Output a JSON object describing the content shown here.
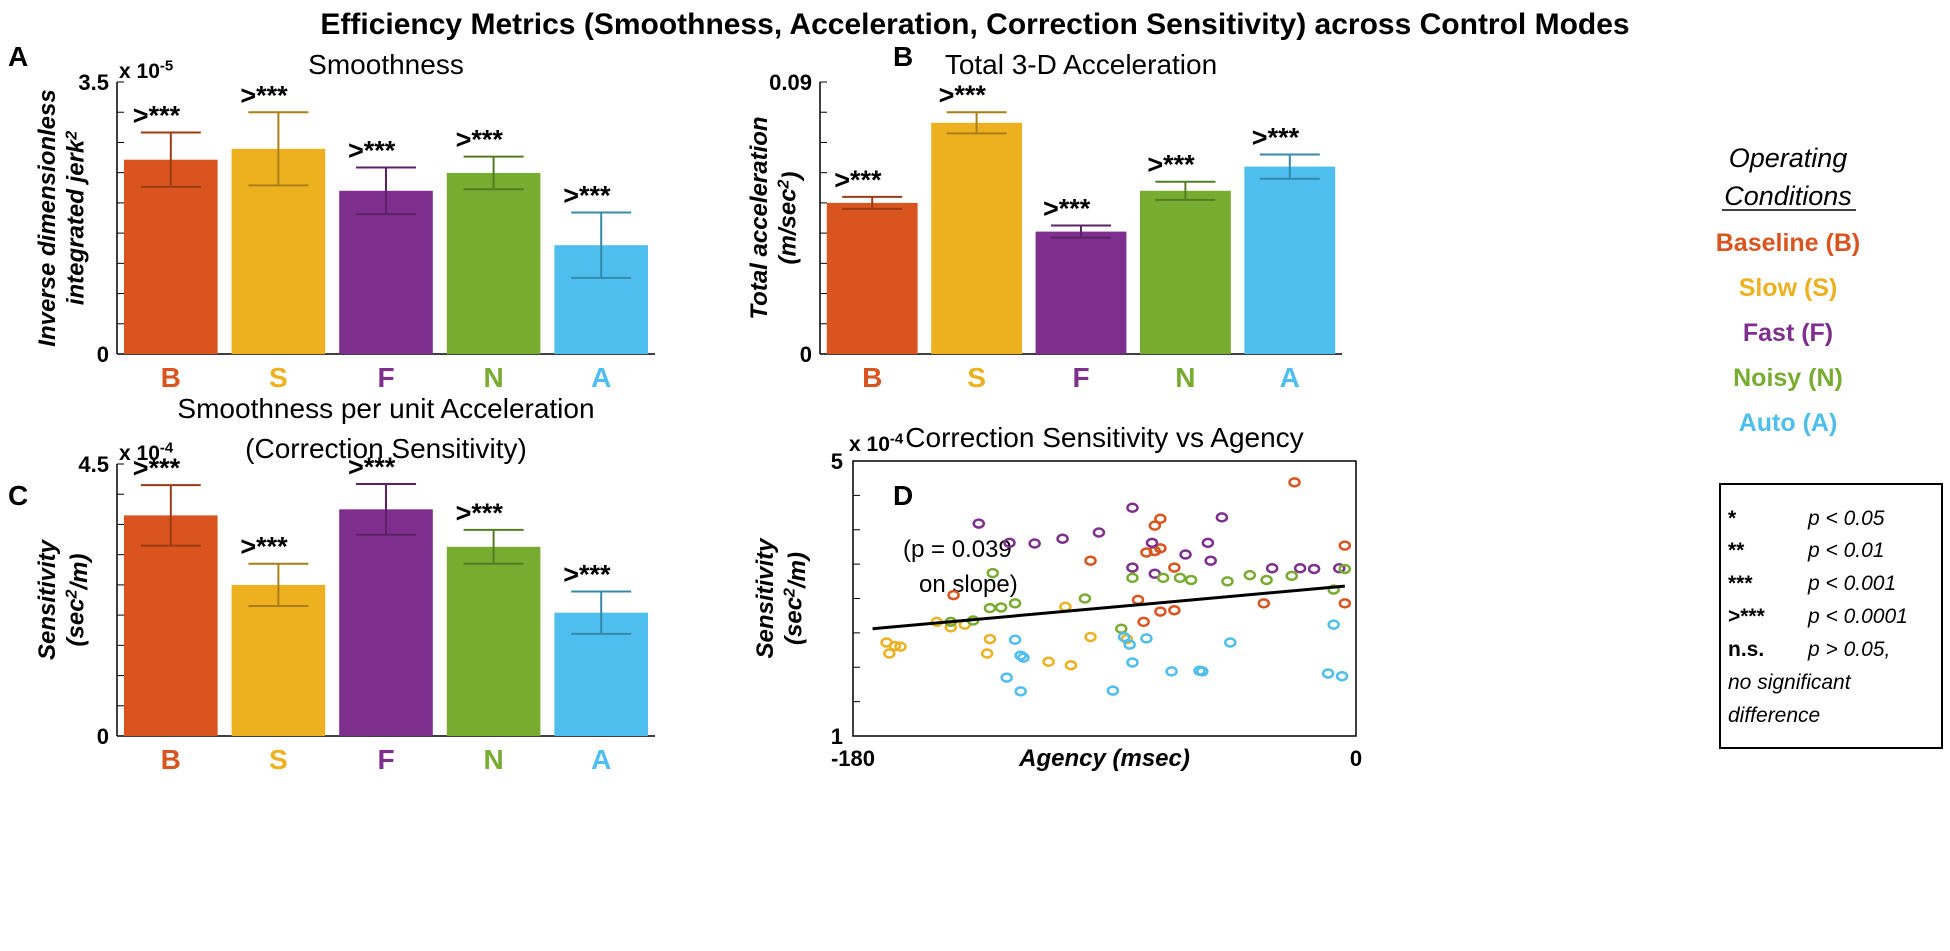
{
  "figure_title": "Efficiency Metrics (Smoothness, Acceleration, Correction Sensitivity) across Control Modes",
  "colors": {
    "B": "#d9541e",
    "S": "#edb120",
    "F": "#7e2f8e",
    "N": "#77ac30",
    "A": "#4dbeee",
    "axis": "#000000"
  },
  "panels": {
    "A": {
      "letter": "A"
    },
    "B": {
      "letter": "B"
    },
    "C": {
      "letter": "C"
    },
    "D": {
      "letter": "D"
    }
  },
  "legend": {
    "heading_line1": "Operating",
    "heading_line2": "Conditions",
    "items": [
      {
        "key": "B",
        "label": "Baseline (B)"
      },
      {
        "key": "S",
        "label": "Slow (S)"
      },
      {
        "key": "F",
        "label": "Fast (F)"
      },
      {
        "key": "N",
        "label": "Noisy (N)"
      },
      {
        "key": "A",
        "label": "Auto (A)"
      }
    ]
  },
  "significance_key": [
    {
      "symbol": "*",
      "text": "p < 0.05"
    },
    {
      "symbol": "**",
      "text": "p < 0.01"
    },
    {
      "symbol": "***",
      "text": "p < 0.001"
    },
    {
      "symbol": ">***",
      "text": "p < 0.0001"
    },
    {
      "symbol": "n.s.",
      "text": "p > 0.05,"
    },
    {
      "symbol": "",
      "text": "no significant"
    },
    {
      "symbol": "",
      "text": "difference"
    }
  ],
  "chart_data": [
    {
      "panel": "A",
      "type": "bar",
      "title": "Smoothness",
      "ylabel_line1": "Inverse dimensionless",
      "ylabel_line2": "integrated jerk",
      "ylabel_sup": "2",
      "y_exponent": "x 10",
      "y_exponent_power": "-5",
      "ylim": [
        0,
        3.5
      ],
      "yticks": [
        {
          "v": 0,
          "label": "0"
        },
        {
          "v": 3.5,
          "label": "3.5"
        }
      ],
      "categories": [
        "B",
        "S",
        "F",
        "N",
        "A"
      ],
      "values": [
        2.5,
        2.64,
        2.1,
        2.33,
        1.4
      ],
      "errors": [
        0.35,
        0.47,
        0.3,
        0.21,
        0.42
      ],
      "significance": [
        ">***",
        ">***",
        ">***",
        ">***",
        ">***"
      ]
    },
    {
      "panel": "B",
      "type": "bar",
      "title": "Total 3-D Acceleration",
      "ylabel_line1": "Total acceleration",
      "ylabel_line2": "(m/sec",
      "ylabel_sup": "2",
      "ylabel_tail": ")",
      "y_exponent": "",
      "y_exponent_power": "",
      "ylim": [
        0,
        0.09
      ],
      "yticks": [
        {
          "v": 0,
          "label": "0"
        },
        {
          "v": 0.09,
          "label": "0.09"
        }
      ],
      "categories": [
        "B",
        "S",
        "F",
        "N",
        "A"
      ],
      "values": [
        0.05,
        0.0765,
        0.0405,
        0.054,
        0.062
      ],
      "errors": [
        0.002,
        0.0035,
        0.002,
        0.003,
        0.004
      ],
      "significance": [
        ">***",
        ">***",
        ">***",
        ">***",
        ">***"
      ]
    },
    {
      "panel": "C",
      "type": "bar",
      "title": "Smoothness per unit Acceleration",
      "subtitle": "(Correction Sensitivity)",
      "ylabel_line1": "Sensitivity",
      "ylabel_line2": "(sec",
      "ylabel_sup": "2",
      "ylabel_tail": "/m)",
      "y_exponent": "x 10",
      "y_exponent_power": "-4",
      "ylim": [
        0,
        4.5
      ],
      "yticks": [
        {
          "v": 0,
          "label": "0"
        },
        {
          "v": 4.5,
          "label": "4.5"
        }
      ],
      "categories": [
        "B",
        "S",
        "F",
        "N",
        "A"
      ],
      "values": [
        3.65,
        2.5,
        3.75,
        3.13,
        2.04
      ],
      "errors": [
        0.5,
        0.35,
        0.42,
        0.28,
        0.35
      ],
      "significance": [
        ">***",
        ">***",
        ">***",
        ">***",
        ">***"
      ]
    },
    {
      "panel": "D",
      "type": "scatter",
      "title": "Correction Sensitivity vs Agency",
      "xlabel": "Agency (msec)",
      "ylabel_line1": "Sensitivity",
      "ylabel_line2": "(sec",
      "ylabel_sup": "2",
      "ylabel_tail": "/m)",
      "y_exponent": "x 10",
      "y_exponent_power": "-4",
      "xlim": [
        -180,
        0
      ],
      "ylim": [
        1,
        5
      ],
      "xticks": [
        {
          "v": -180,
          "label": "-180"
        },
        {
          "v": 0,
          "label": "0"
        }
      ],
      "yticks": [
        {
          "v": 1,
          "label": "1"
        },
        {
          "v": 5,
          "label": "5"
        }
      ],
      "annotation_line1": "(p = 0.039",
      "annotation_line2": "on slope)",
      "fit_line": {
        "x": [
          -173,
          -4
        ],
        "y": [
          2.56,
          3.18
        ]
      },
      "series": [
        {
          "name": "B",
          "points": [
            [
              -144,
              3.05
            ],
            [
              -95,
              3.55
            ],
            [
              -75,
              3.67
            ],
            [
              -72,
              4.06
            ],
            [
              -72,
              3.69
            ],
            [
              -70,
              3.73
            ],
            [
              -70,
              4.16
            ],
            [
              -65,
              3.45
            ],
            [
              -33,
              2.93
            ],
            [
              -22,
              4.69
            ],
            [
              -4,
              3.77
            ],
            [
              -4,
              2.93
            ],
            [
              -76,
              2.66
            ],
            [
              -70,
              2.81
            ],
            [
              -65,
              2.83
            ],
            [
              -78,
              2.98
            ]
          ]
        },
        {
          "name": "S",
          "points": [
            [
              -168,
              2.36
            ],
            [
              -165,
              2.31
            ],
            [
              -167,
              2.2
            ],
            [
              -163,
              2.3
            ],
            [
              -150,
              2.66
            ],
            [
              -145,
              2.58
            ],
            [
              -140,
              2.62
            ],
            [
              -132,
              2.2
            ],
            [
              -131,
              2.41
            ],
            [
              -110,
              2.08
            ],
            [
              -104,
              2.88
            ],
            [
              -102,
              2.03
            ],
            [
              -95,
              2.44
            ],
            [
              -82,
              2.41
            ]
          ]
        },
        {
          "name": "F",
          "points": [
            [
              -135,
              4.09
            ],
            [
              -124,
              3.81
            ],
            [
              -115,
              3.8
            ],
            [
              -105,
              3.87
            ],
            [
              -92,
              3.96
            ],
            [
              -80,
              4.32
            ],
            [
              -73,
              3.81
            ],
            [
              -53,
              3.81
            ],
            [
              -52,
              3.55
            ],
            [
              -61,
              3.64
            ],
            [
              -48,
              4.18
            ],
            [
              -30,
              3.44
            ],
            [
              -20,
              3.44
            ],
            [
              -15,
              3.43
            ],
            [
              -6,
              3.44
            ],
            [
              -80,
              3.45
            ],
            [
              -72,
              3.36
            ]
          ]
        },
        {
          "name": "N",
          "points": [
            [
              -145,
              2.66
            ],
            [
              -137,
              2.68
            ],
            [
              -130,
              3.37
            ],
            [
              -131,
              2.86
            ],
            [
              -127,
              2.87
            ],
            [
              -122,
              2.93
            ],
            [
              -97,
              3.0
            ],
            [
              -80,
              3.3
            ],
            [
              -69,
              3.3
            ],
            [
              -63,
              3.3
            ],
            [
              -59,
              3.27
            ],
            [
              -46,
              3.25
            ],
            [
              -38,
              3.34
            ],
            [
              -32,
              3.27
            ],
            [
              -23,
              3.33
            ],
            [
              -8,
              3.13
            ],
            [
              -4,
              3.43
            ],
            [
              -84,
              2.56
            ]
          ]
        },
        {
          "name": "A",
          "points": [
            [
              -122,
              2.4
            ],
            [
              -120,
              2.17
            ],
            [
              -119,
              2.14
            ],
            [
              -125,
              1.85
            ],
            [
              -120,
              1.65
            ],
            [
              -87,
              1.66
            ],
            [
              -83,
              2.44
            ],
            [
              -81,
              2.33
            ],
            [
              -80,
              2.07
            ],
            [
              -66,
              1.94
            ],
            [
              -56,
              1.95
            ],
            [
              -55,
              1.94
            ],
            [
              -45,
              2.36
            ],
            [
              -8,
              2.62
            ],
            [
              -10,
              1.91
            ],
            [
              -5,
              1.87
            ],
            [
              -75,
              2.42
            ]
          ]
        }
      ]
    }
  ]
}
